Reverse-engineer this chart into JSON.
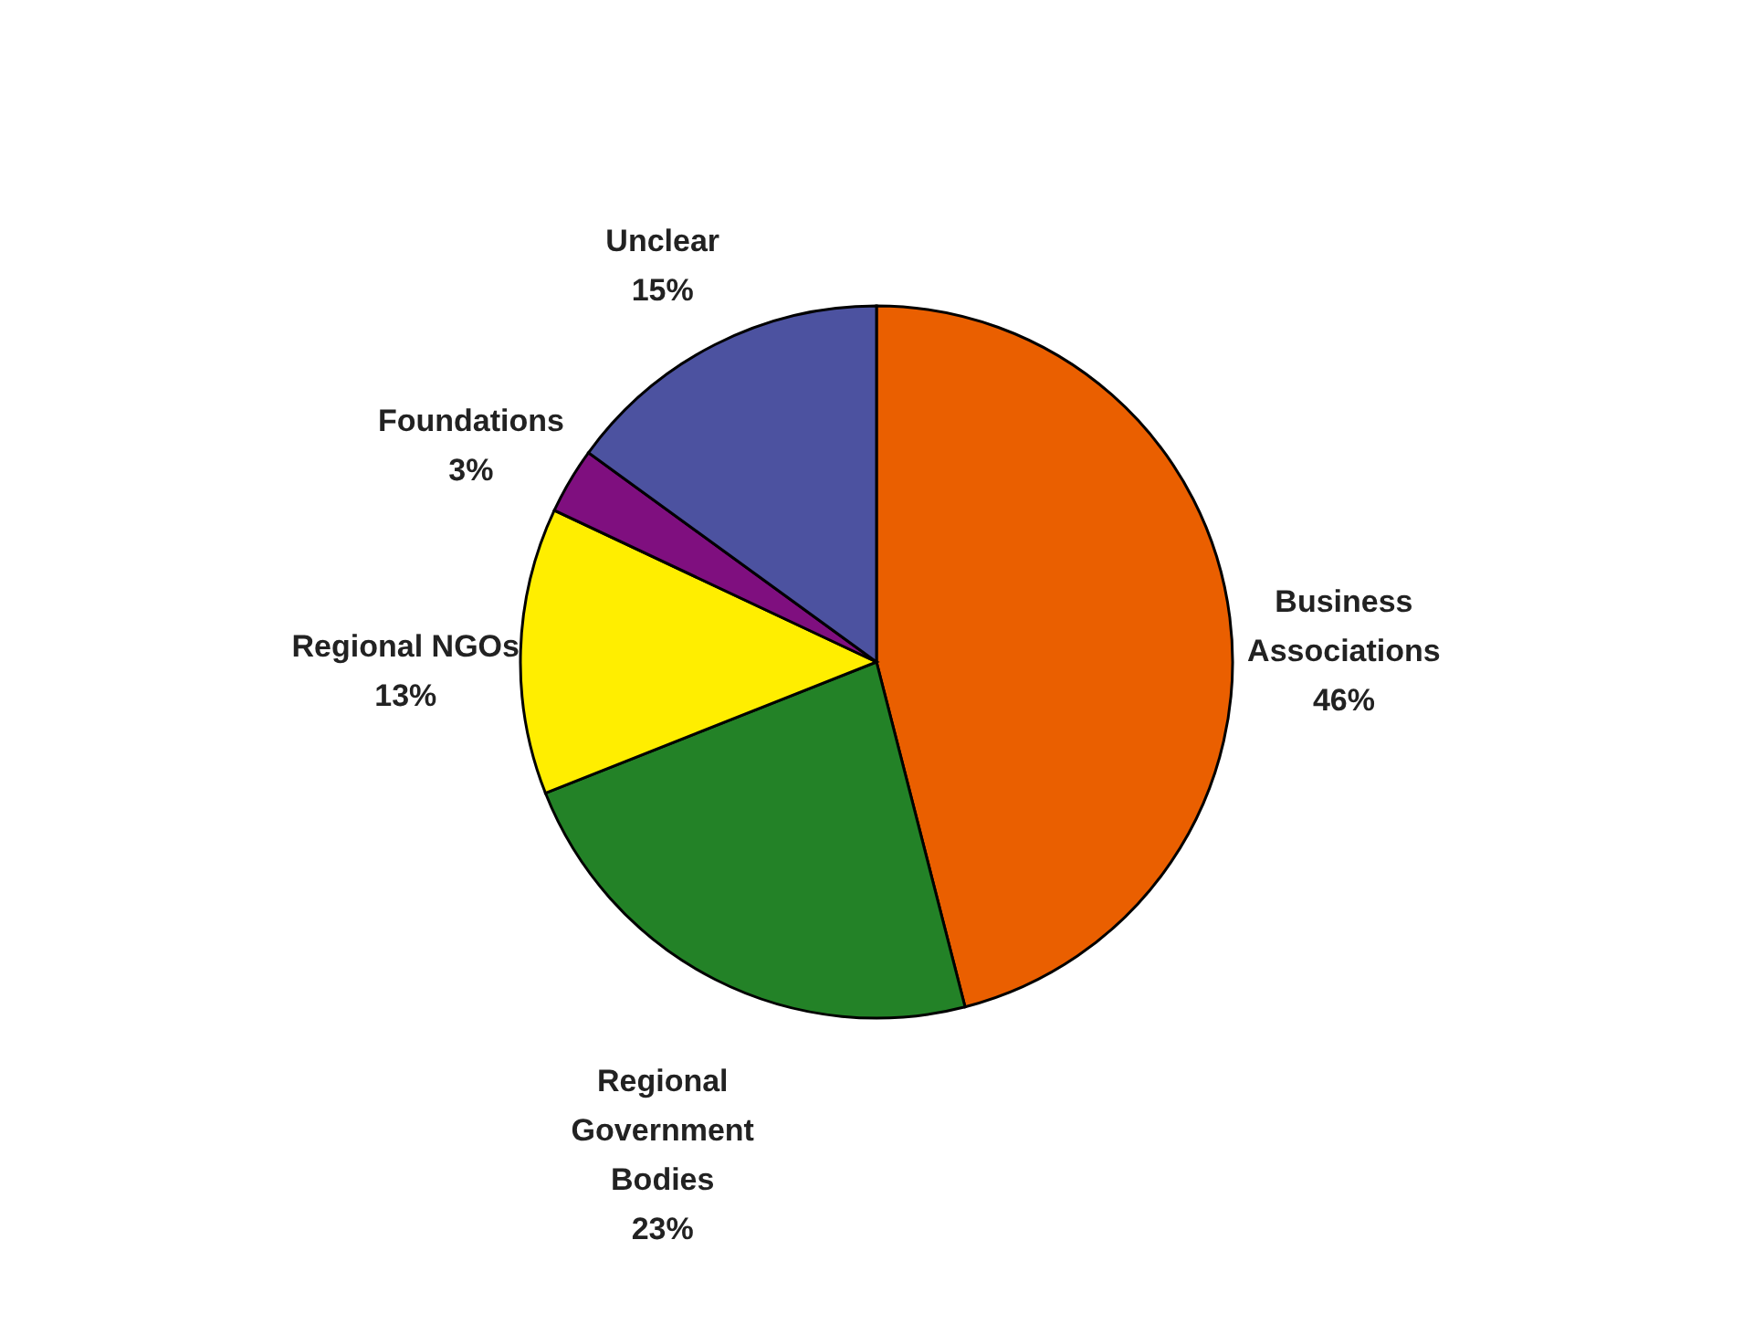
{
  "chart_data": {
    "type": "pie",
    "categories": [
      "Business\nAssociations",
      "Regional\nGovernment\nBodies",
      "Regional NGOs",
      "Foundations",
      "Unclear"
    ],
    "values": [
      46,
      23,
      13,
      3,
      15
    ],
    "value_labels": [
      "46%",
      "23%",
      "13%",
      "3%",
      "15%"
    ],
    "colors": [
      "#ea5f00",
      "#238227",
      "#ffee00",
      "#7f0f7f",
      "#4c52a0"
    ],
    "legend": false
  }
}
